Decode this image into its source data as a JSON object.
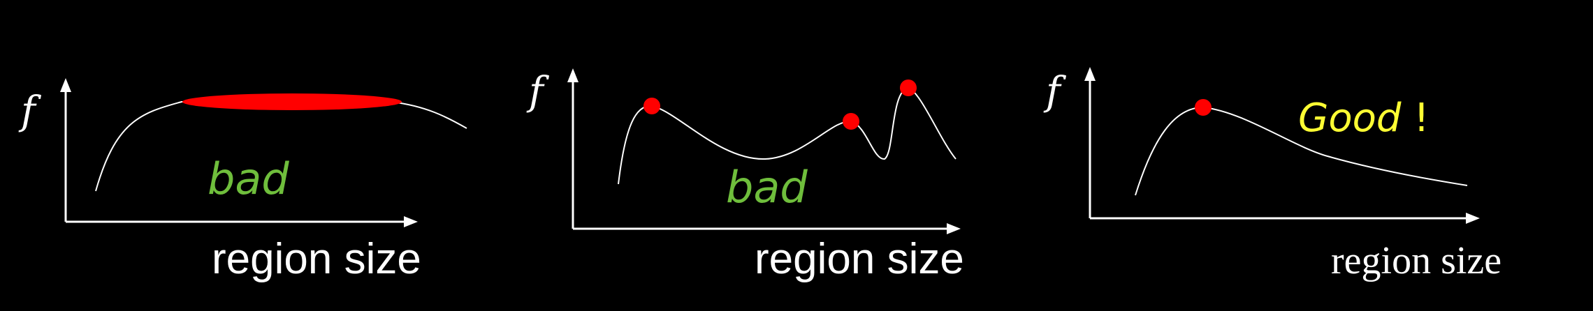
{
  "colors": {
    "background": "#000000",
    "axis": "#ffffff",
    "curve": "#ffffff",
    "marker": "#ff0000",
    "bad": "#6fbe3c",
    "good": "#ffff33"
  },
  "panels": [
    {
      "y_label": "f",
      "x_label": "region size",
      "verdict": "bad",
      "verdict_suffix": "",
      "verdict_color": "#6fbe3c",
      "marker": "plateau"
    },
    {
      "y_label": "f",
      "x_label": "region size",
      "verdict": "bad",
      "verdict_suffix": "",
      "verdict_color": "#6fbe3c",
      "marker": "multiple-peaks"
    },
    {
      "y_label": "f",
      "x_label": "region size",
      "verdict": "Good",
      "verdict_suffix": " !",
      "verdict_color": "#ffff33",
      "marker": "single-peak"
    }
  ]
}
